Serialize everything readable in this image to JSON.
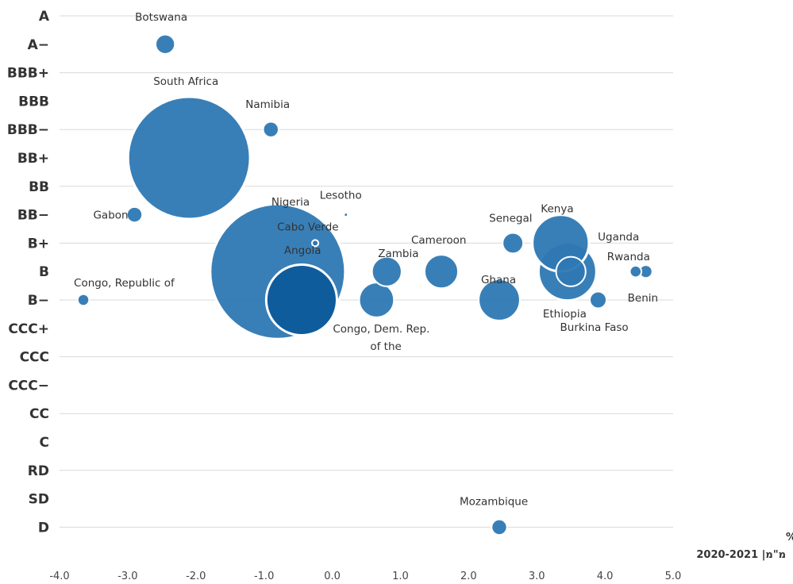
{
  "chart_data": {
    "type": "scatter",
    "title": "",
    "xlabel": [
      "צמיחה שנתית %",
      "2020-2021 |מ\"מ"
    ],
    "ylabel": "",
    "xlim": [
      -4.0,
      5.0
    ],
    "x_ticks": [
      "-4.0",
      "-3.0",
      "-2.0",
      "-1.0",
      "0.0",
      "1.0",
      "2.0",
      "3.0",
      "4.0",
      "5.0"
    ],
    "y_categories": [
      "A",
      "A−",
      "BBB+",
      "BBB",
      "BBB−",
      "BB+",
      "BB",
      "BB−",
      "B+",
      "B",
      "B−",
      "CCC+",
      "CCC",
      "CCC−",
      "CC",
      "C",
      "RD",
      "SD",
      "D"
    ],
    "grid": true,
    "bubble_color": "#2e78b3",
    "bubble_color_dark": "#0f5c9c",
    "bubble_edge": "#ffffff",
    "points": [
      {
        "label": "Botswana",
        "x": -2.45,
        "y": "A−",
        "size": 1.5
      },
      {
        "label": "South Africa",
        "x": -2.1,
        "y": "BB+",
        "size": 9.5
      },
      {
        "label": "Namibia",
        "x": -0.9,
        "y": "BBB−",
        "size": 1.2
      },
      {
        "label": "Gabon",
        "x": -2.9,
        "y": "BB−",
        "size": 1.2
      },
      {
        "label": "Nigeria",
        "x": -0.8,
        "y": "B",
        "size": 10.5
      },
      {
        "label": "Lesotho",
        "x": 0.2,
        "y": "BB−",
        "size": 0.3
      },
      {
        "label": "Cabo Verde",
        "x": -0.25,
        "y": "B+",
        "size": 0.5
      },
      {
        "label": "Angola",
        "x": -0.45,
        "y": "B−",
        "size": 5.5
      },
      {
        "label": "Congo, Republic of",
        "x": -3.65,
        "y": "B−",
        "size": 0.9
      },
      {
        "label": "Zambia",
        "x": 0.8,
        "y": "B",
        "size": 2.3
      },
      {
        "label": "Congo, Dem. Rep. of the",
        "x": 0.65,
        "y": "B−",
        "size": 2.7
      },
      {
        "label": "Cameroon",
        "x": 1.6,
        "y": "B",
        "size": 2.6
      },
      {
        "label": "Senegal",
        "x": 2.65,
        "y": "B+",
        "size": 1.6
      },
      {
        "label": "Ghana",
        "x": 2.45,
        "y": "B−",
        "size": 3.2
      },
      {
        "label": "Kenya",
        "x": 3.35,
        "y": "B+",
        "size": 4.4
      },
      {
        "label": "Ethiopia",
        "x": 3.45,
        "y": "B",
        "size": 4.5
      },
      {
        "label": "Uganda",
        "x": 3.5,
        "y": "B",
        "size": 2.3
      },
      {
        "label": "Burkina Faso",
        "x": 3.9,
        "y": "B−",
        "size": 1.3
      },
      {
        "label": "Rwanda",
        "x": 4.45,
        "y": "B",
        "size": 0.9
      },
      {
        "label": "Benin",
        "x": 4.6,
        "y": "B",
        "size": 1.0
      },
      {
        "label": "Mozambique",
        "x": 2.45,
        "y": "D",
        "size": 1.2
      }
    ]
  }
}
